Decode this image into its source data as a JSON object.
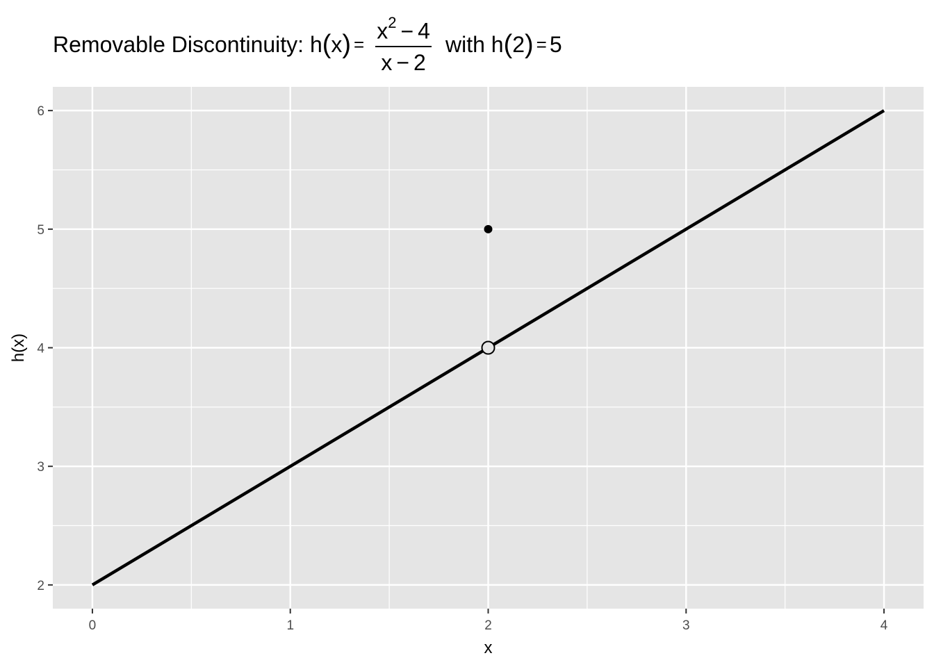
{
  "chart_data": {
    "type": "line",
    "title": {
      "prefix": "Removable Discontinuity: h",
      "lparen": "(",
      "rparen": ")",
      "var": "x",
      "equals": "=",
      "numerator_base": "x",
      "numerator_exp": "2",
      "numerator_op": "−",
      "numerator_const": "4",
      "denominator_var": "x",
      "denominator_op": "−",
      "denominator_const": "2",
      "suffix_prefix": "with h",
      "suffix_arg": "2",
      "suffix_equals": "=",
      "suffix_value": "5"
    },
    "xlabel": "x",
    "ylabel": "h(x)",
    "xlim": [
      -0.2,
      4.2
    ],
    "ylim": [
      1.8,
      6.2
    ],
    "x_ticks": [
      0,
      1,
      2,
      3,
      4
    ],
    "y_ticks": [
      2,
      3,
      4,
      5,
      6
    ],
    "x_minor": [
      0.5,
      1.5,
      2.5,
      3.5
    ],
    "y_minor": [
      2.5,
      3.5,
      4.5,
      5.5
    ],
    "grid": true,
    "series": [
      {
        "type": "line",
        "x": [
          0,
          4
        ],
        "y": [
          2,
          6
        ],
        "color": "#000000"
      }
    ],
    "points": [
      {
        "kind": "open-circle",
        "x": 2,
        "y": 4
      },
      {
        "kind": "filled-dot",
        "x": 2,
        "y": 5
      }
    ],
    "panel_color": "#e5e5e5",
    "grid_color": "#ffffff"
  }
}
